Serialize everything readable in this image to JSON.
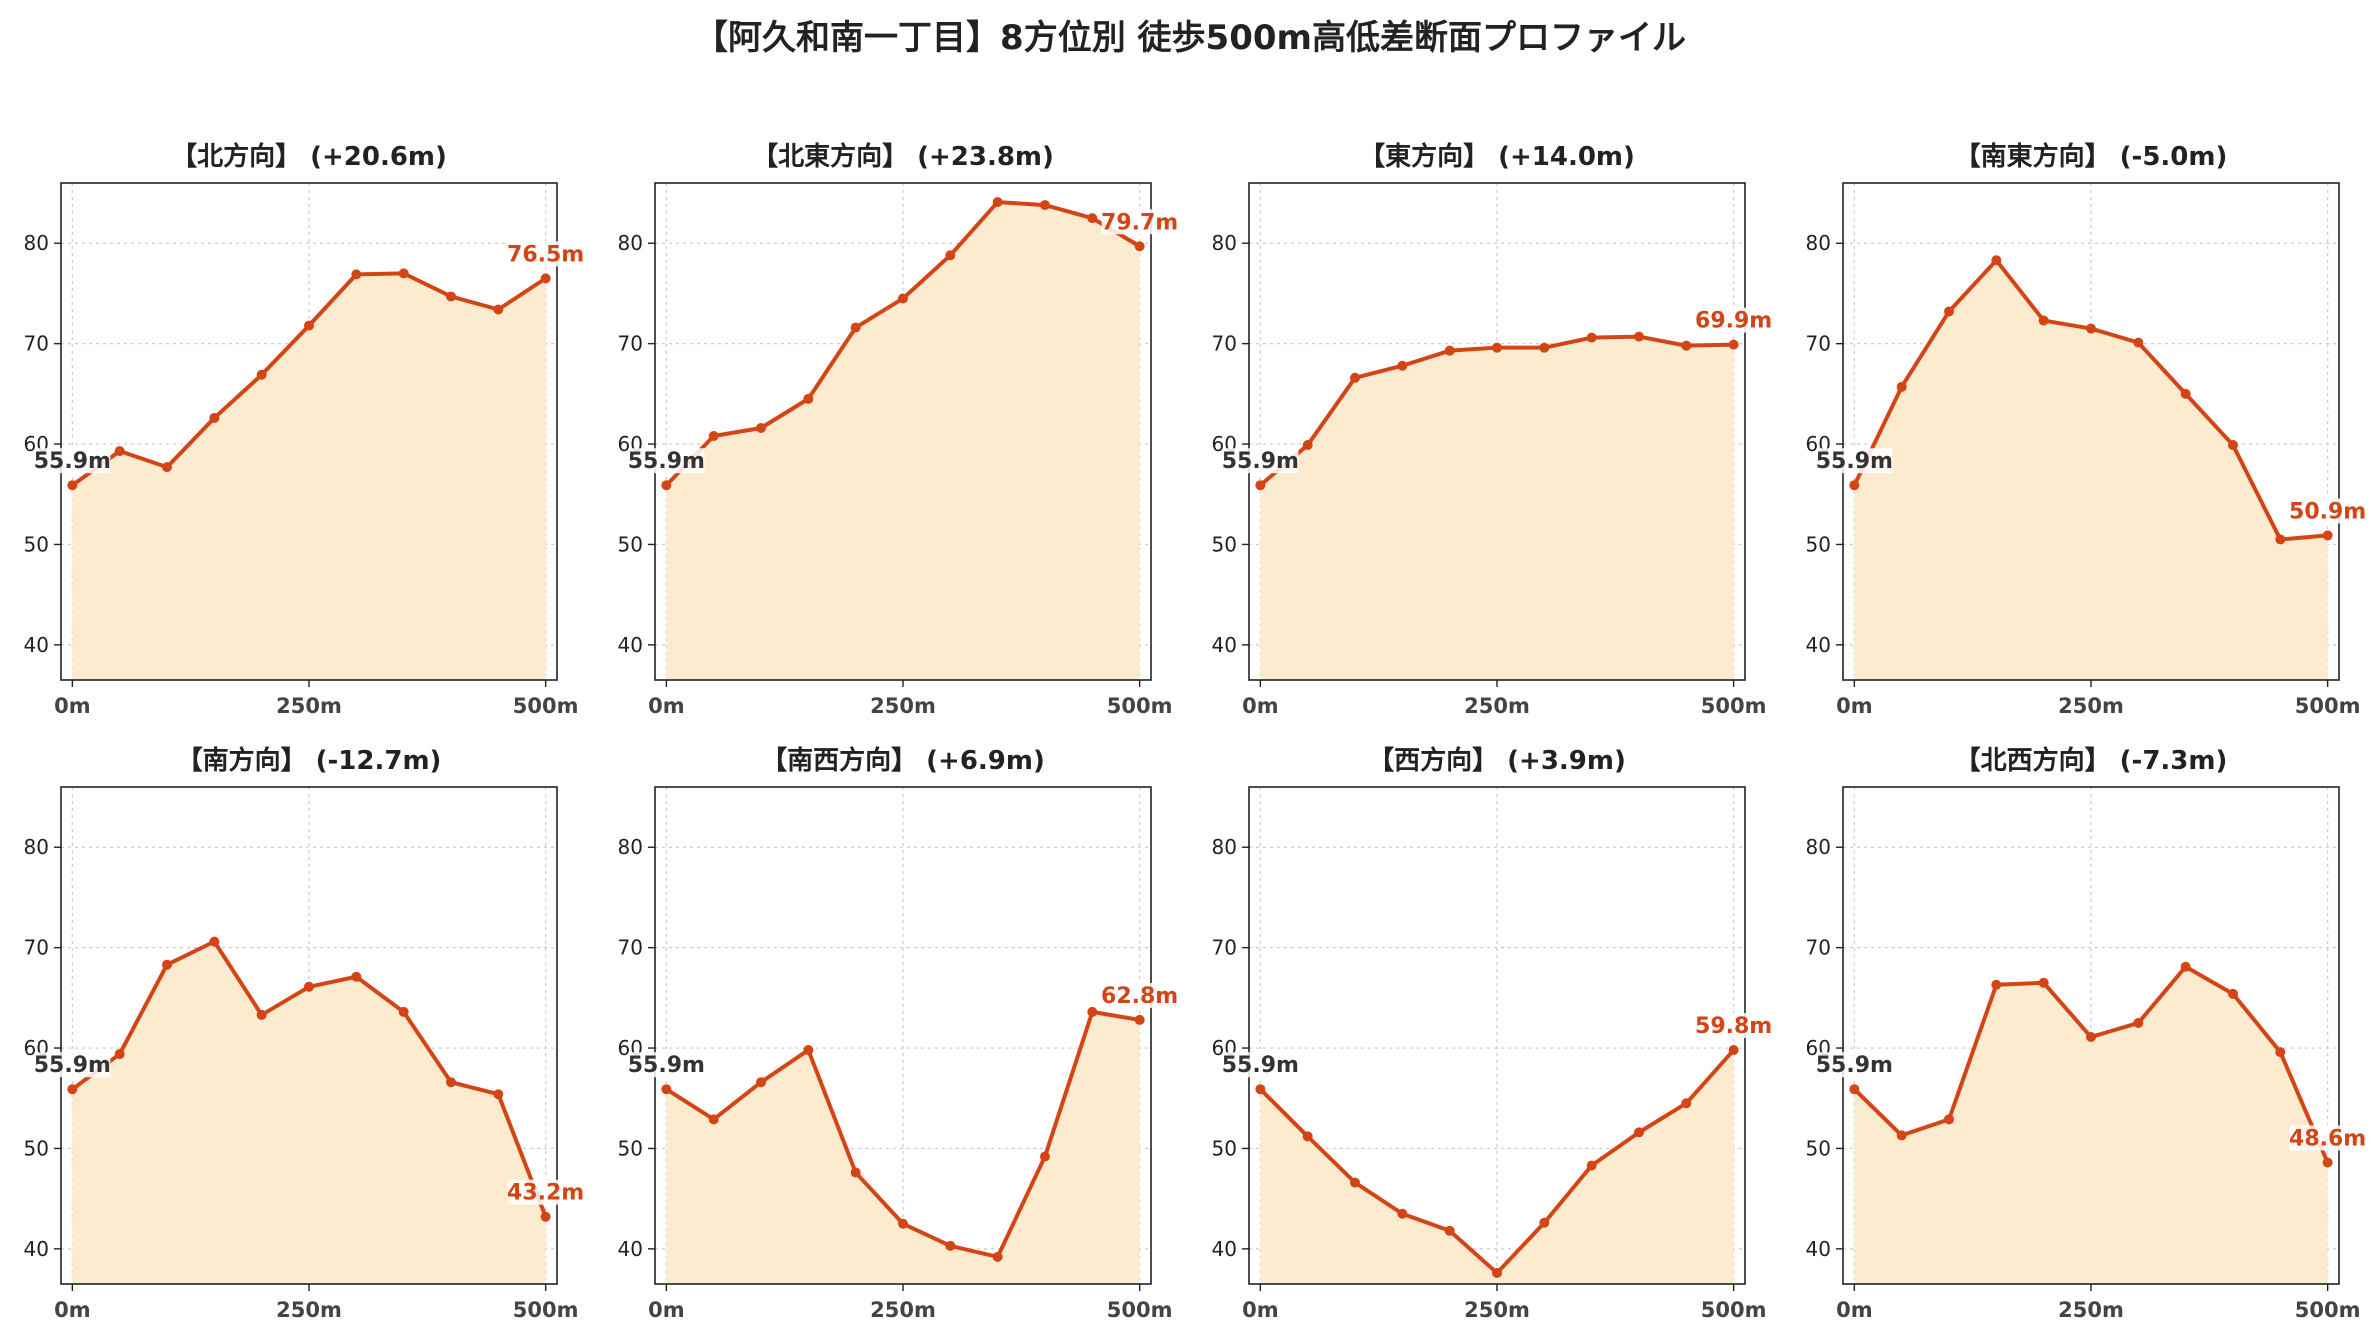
{
  "title": "【阿久和南一丁目】8方位別 徒歩500m高低差断面プロファイル",
  "colors": {
    "line": "#d44516",
    "fill": "#fdebd0",
    "start_label": "#333333",
    "end_label": "#d44516",
    "grid": "#cccccc"
  },
  "chart_data": [
    {
      "type": "area",
      "title": "【北方向】 (+20.6m)",
      "x": [
        0,
        50,
        100,
        150,
        200,
        250,
        300,
        350,
        400,
        450,
        500
      ],
      "y": [
        55.9,
        59.3,
        57.7,
        62.6,
        66.9,
        71.8,
        76.9,
        77.0,
        74.7,
        73.4,
        76.5
      ],
      "xticks": [
        "0m",
        "250m",
        "500m"
      ],
      "yticks": [
        40,
        50,
        60,
        70,
        80
      ],
      "ylim": [
        36.5,
        86
      ],
      "xlim": [
        -12,
        512
      ],
      "start_label": "55.9m",
      "end_label": "76.5m",
      "grid": true
    },
    {
      "type": "area",
      "title": "【北東方向】 (+23.8m)",
      "x": [
        0,
        50,
        100,
        150,
        200,
        250,
        300,
        350,
        400,
        450,
        500
      ],
      "y": [
        55.9,
        60.8,
        61.6,
        64.5,
        71.6,
        74.5,
        78.8,
        84.1,
        83.8,
        82.5,
        79.7
      ],
      "xticks": [
        "0m",
        "250m",
        "500m"
      ],
      "yticks": [
        40,
        50,
        60,
        70,
        80
      ],
      "ylim": [
        36.5,
        86
      ],
      "xlim": [
        -12,
        512
      ],
      "start_label": "55.9m",
      "end_label": "79.7m",
      "grid": true
    },
    {
      "type": "area",
      "title": "【東方向】 (+14.0m)",
      "x": [
        0,
        50,
        100,
        150,
        200,
        250,
        300,
        350,
        400,
        450,
        500
      ],
      "y": [
        55.9,
        59.9,
        66.6,
        67.8,
        69.3,
        69.6,
        69.6,
        70.6,
        70.7,
        69.8,
        69.9
      ],
      "xticks": [
        "0m",
        "250m",
        "500m"
      ],
      "yticks": [
        40,
        50,
        60,
        70,
        80
      ],
      "ylim": [
        36.5,
        86
      ],
      "xlim": [
        -12,
        512
      ],
      "start_label": "55.9m",
      "end_label": "69.9m",
      "grid": true
    },
    {
      "type": "area",
      "title": "【南東方向】 (-5.0m)",
      "x": [
        0,
        50,
        100,
        150,
        200,
        250,
        300,
        350,
        400,
        450,
        500
      ],
      "y": [
        55.9,
        65.7,
        73.2,
        78.3,
        72.3,
        71.5,
        70.1,
        65.0,
        59.9,
        50.5,
        50.9
      ],
      "xticks": [
        "0m",
        "250m",
        "500m"
      ],
      "yticks": [
        40,
        50,
        60,
        70,
        80
      ],
      "ylim": [
        36.5,
        86
      ],
      "xlim": [
        -12,
        512
      ],
      "start_label": "55.9m",
      "end_label": "50.9m",
      "grid": true
    },
    {
      "type": "area",
      "title": "【南方向】 (-12.7m)",
      "x": [
        0,
        50,
        100,
        150,
        200,
        250,
        300,
        350,
        400,
        450,
        500
      ],
      "y": [
        55.9,
        59.4,
        68.3,
        70.6,
        63.3,
        66.1,
        67.1,
        63.6,
        56.6,
        55.4,
        43.2
      ],
      "xticks": [
        "0m",
        "250m",
        "500m"
      ],
      "yticks": [
        40,
        50,
        60,
        70,
        80
      ],
      "ylim": [
        36.5,
        86
      ],
      "xlim": [
        -12,
        512
      ],
      "start_label": "55.9m",
      "end_label": "43.2m",
      "grid": true
    },
    {
      "type": "area",
      "title": "【南西方向】 (+6.9m)",
      "x": [
        0,
        50,
        100,
        150,
        200,
        250,
        300,
        350,
        400,
        450,
        500
      ],
      "y": [
        55.9,
        52.9,
        56.6,
        59.8,
        47.6,
        42.5,
        40.3,
        39.2,
        49.2,
        63.6,
        62.8
      ],
      "xticks": [
        "0m",
        "250m",
        "500m"
      ],
      "yticks": [
        40,
        50,
        60,
        70,
        80
      ],
      "ylim": [
        36.5,
        86
      ],
      "xlim": [
        -12,
        512
      ],
      "start_label": "55.9m",
      "end_label": "62.8m",
      "grid": true
    },
    {
      "type": "area",
      "title": "【西方向】 (+3.9m)",
      "x": [
        0,
        50,
        100,
        150,
        200,
        250,
        300,
        350,
        400,
        450,
        500
      ],
      "y": [
        55.9,
        51.2,
        46.6,
        43.5,
        41.8,
        37.6,
        42.6,
        48.3,
        51.6,
        54.5,
        59.8
      ],
      "xticks": [
        "0m",
        "250m",
        "500m"
      ],
      "yticks": [
        40,
        50,
        60,
        70,
        80
      ],
      "ylim": [
        36.5,
        86
      ],
      "xlim": [
        -12,
        512
      ],
      "start_label": "55.9m",
      "end_label": "59.8m",
      "grid": true
    },
    {
      "type": "area",
      "title": "【北西方向】 (-7.3m)",
      "x": [
        0,
        50,
        100,
        150,
        200,
        250,
        300,
        350,
        400,
        450,
        500
      ],
      "y": [
        55.9,
        51.3,
        52.9,
        66.3,
        66.5,
        61.1,
        62.5,
        68.1,
        65.4,
        59.6,
        48.6
      ],
      "xticks": [
        "0m",
        "250m",
        "500m"
      ],
      "yticks": [
        40,
        50,
        60,
        70,
        80
      ],
      "ylim": [
        36.5,
        86
      ],
      "xlim": [
        -12,
        512
      ],
      "start_label": "55.9m",
      "end_label": "48.6m",
      "grid": true
    }
  ]
}
